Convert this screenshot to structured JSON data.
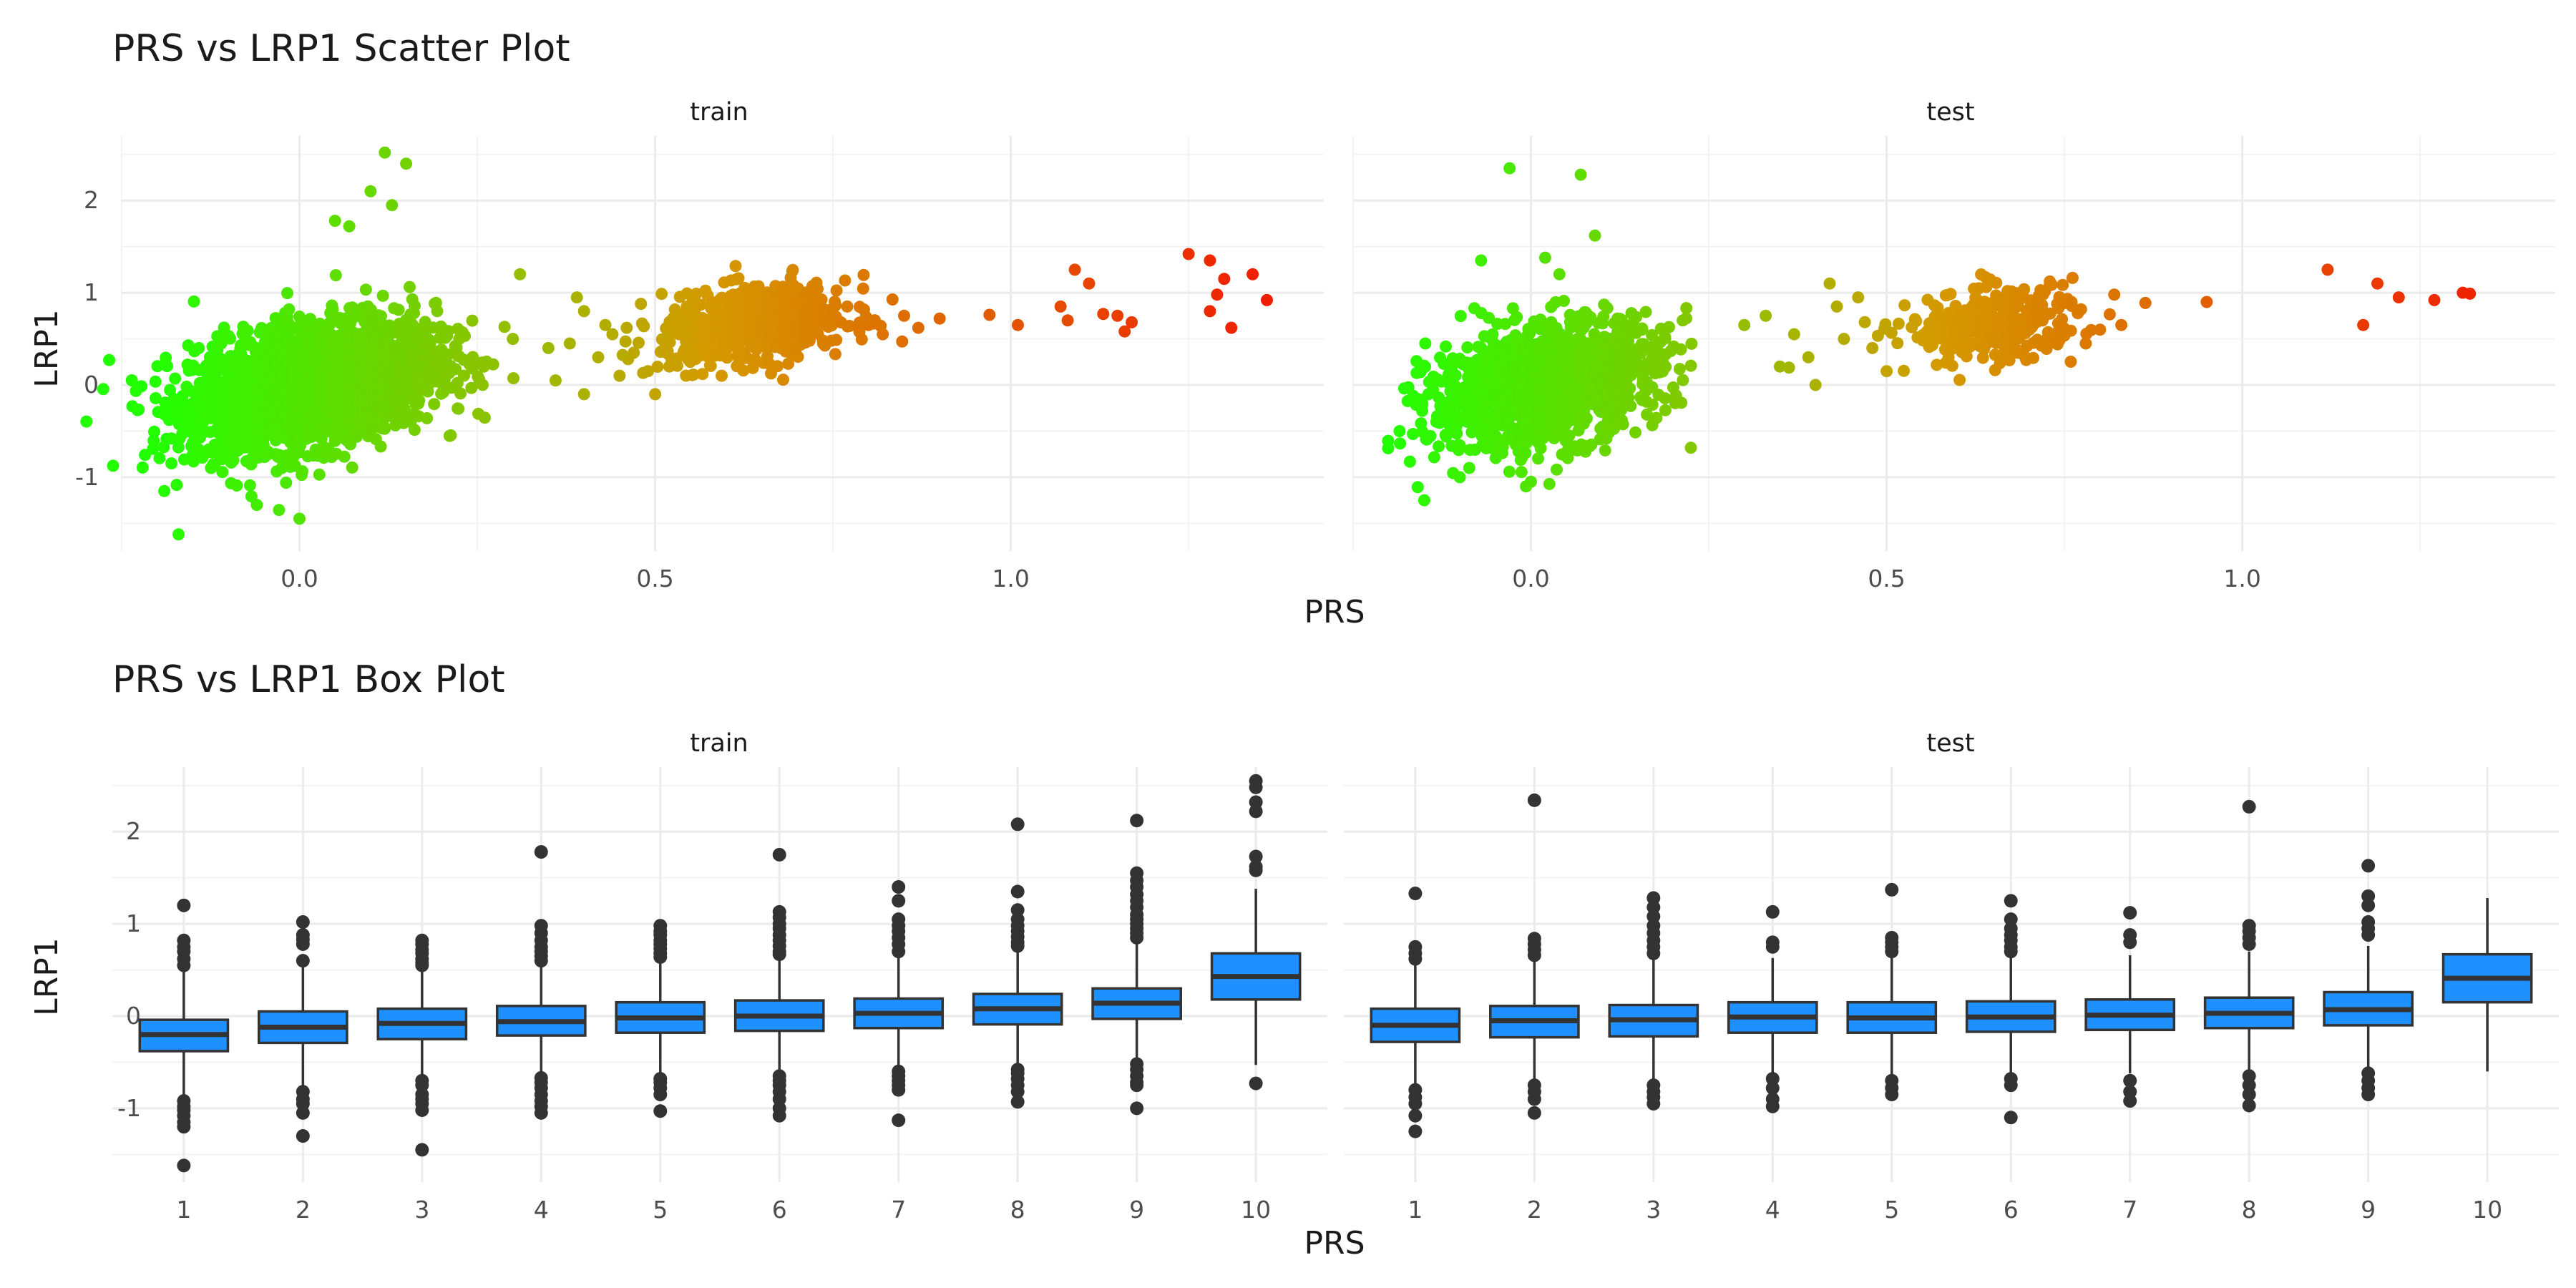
{
  "chart_data": [
    {
      "type": "scatter",
      "title": "PRS vs LRP1 Scatter Plot",
      "xlabel": "PRS",
      "ylabel": "LRP1",
      "xlim": [
        -0.25,
        1.44
      ],
      "ylim": [
        -1.8,
        2.7
      ],
      "x_ticks": [
        0.0,
        0.5,
        1.0
      ],
      "x_tick_labels": [
        "0.0",
        "0.5",
        "1.0"
      ],
      "y_ticks": [
        -1,
        0,
        1,
        2
      ],
      "y_tick_labels": [
        "-1",
        "0",
        "1",
        "2"
      ],
      "grid": true,
      "color_scale": {
        "low": "#22ff00",
        "mid": "#d49a00",
        "high": "#f01e00",
        "domain": [
          -0.2,
          1.35
        ]
      },
      "panels": [
        {
          "name": "train",
          "dense_clusters": [
            {
              "n": 2600,
              "x_mean": 0.02,
              "x_sd": 0.085,
              "y_mean": 0.0,
              "y_sd": 0.32,
              "slope": 1.4
            },
            {
              "n": 600,
              "x_mean": 0.64,
              "x_sd": 0.065,
              "y_mean": 0.65,
              "y_sd": 0.2,
              "slope": 0.8
            }
          ],
          "points": [
            [
              0.12,
              2.52
            ],
            [
              0.15,
              2.4
            ],
            [
              0.05,
              1.78
            ],
            [
              0.07,
              1.72
            ],
            [
              0.1,
              2.1
            ],
            [
              0.13,
              1.95
            ],
            [
              -0.17,
              -1.62
            ],
            [
              -0.19,
              -1.15
            ],
            [
              -0.18,
              -0.58
            ],
            [
              -0.18,
              -0.85
            ],
            [
              -0.06,
              -1.3
            ],
            [
              0.0,
              -1.45
            ],
            [
              0.31,
              1.2
            ],
            [
              0.3,
              0.5
            ],
            [
              0.35,
              0.4
            ],
            [
              0.38,
              0.45
            ],
            [
              0.39,
              0.95
            ],
            [
              0.4,
              0.8
            ],
            [
              0.42,
              0.3
            ],
            [
              0.44,
              0.55
            ],
            [
              0.45,
              0.1
            ],
            [
              0.47,
              0.35
            ],
            [
              0.48,
              0.88
            ],
            [
              0.5,
              -0.1
            ],
            [
              0.52,
              0.2
            ],
            [
              0.36,
              0.05
            ],
            [
              0.4,
              -0.1
            ],
            [
              0.43,
              0.65
            ],
            [
              0.46,
              0.62
            ],
            [
              0.49,
              0.15
            ],
            [
              0.77,
              0.85
            ],
            [
              0.8,
              0.65
            ],
            [
              0.82,
              0.55
            ],
            [
              0.85,
              0.75
            ],
            [
              0.87,
              0.62
            ],
            [
              0.9,
              0.72
            ],
            [
              0.97,
              0.76
            ],
            [
              1.01,
              0.65
            ],
            [
              1.07,
              0.85
            ],
            [
              1.08,
              0.7
            ],
            [
              1.09,
              1.25
            ],
            [
              1.11,
              1.1
            ],
            [
              1.13,
              0.77
            ],
            [
              1.15,
              0.75
            ],
            [
              1.16,
              0.58
            ],
            [
              1.17,
              0.68
            ],
            [
              1.25,
              1.42
            ],
            [
              1.28,
              1.35
            ],
            [
              1.28,
              0.8
            ],
            [
              1.29,
              0.98
            ],
            [
              1.3,
              1.15
            ],
            [
              1.31,
              0.62
            ],
            [
              1.34,
              1.2
            ],
            [
              1.36,
              0.92
            ]
          ]
        },
        {
          "name": "test",
          "dense_clusters": [
            {
              "n": 1300,
              "x_mean": 0.02,
              "x_sd": 0.08,
              "y_mean": 0.0,
              "y_sd": 0.32,
              "slope": 1.4
            },
            {
              "n": 300,
              "x_mean": 0.65,
              "x_sd": 0.06,
              "y_mean": 0.65,
              "y_sd": 0.2,
              "slope": 0.8
            }
          ],
          "points": [
            [
              -0.03,
              2.35
            ],
            [
              0.07,
              2.28
            ],
            [
              0.09,
              1.62
            ],
            [
              -0.07,
              1.35
            ],
            [
              0.02,
              1.38
            ],
            [
              0.04,
              1.2
            ],
            [
              -0.15,
              -1.25
            ],
            [
              -0.16,
              -0.15
            ],
            [
              -0.1,
              -1.0
            ],
            [
              0.0,
              -1.05
            ],
            [
              0.3,
              0.65
            ],
            [
              0.33,
              0.75
            ],
            [
              0.35,
              0.2
            ],
            [
              0.37,
              0.55
            ],
            [
              0.4,
              0.0
            ],
            [
              0.42,
              1.1
            ],
            [
              0.44,
              0.5
            ],
            [
              0.46,
              0.95
            ],
            [
              0.48,
              0.4
            ],
            [
              0.5,
              0.15
            ],
            [
              0.39,
              0.3
            ],
            [
              0.43,
              0.85
            ],
            [
              0.76,
              0.9
            ],
            [
              0.78,
              0.45
            ],
            [
              0.8,
              0.6
            ],
            [
              0.82,
              0.98
            ],
            [
              0.83,
              0.65
            ],
            [
              0.95,
              0.9
            ],
            [
              1.12,
              1.25
            ],
            [
              1.17,
              0.65
            ],
            [
              1.19,
              1.1
            ],
            [
              1.22,
              0.95
            ],
            [
              1.27,
              0.92
            ],
            [
              1.31,
              1.0
            ],
            [
              1.32,
              0.99
            ]
          ]
        }
      ]
    },
    {
      "type": "box",
      "title": "PRS vs LRP1 Box Plot",
      "xlabel": "PRS",
      "ylabel": "LRP1",
      "categories": [
        "1",
        "2",
        "3",
        "4",
        "5",
        "6",
        "7",
        "8",
        "9",
        "10"
      ],
      "ylim": [
        -1.8,
        2.7
      ],
      "y_ticks": [
        -1,
        0,
        1,
        2
      ],
      "y_tick_labels": [
        "-1",
        "0",
        "1",
        "2"
      ],
      "grid": true,
      "box_fill": "#1e90ff",
      "panels": [
        {
          "name": "train",
          "boxes": [
            {
              "q1": -0.38,
              "median": -0.2,
              "q3": -0.04,
              "lower": -0.88,
              "upper": 0.49,
              "outliers": [
                1.2,
                0.82,
                0.75,
                0.7,
                0.62,
                0.55,
                -0.92,
                -0.98,
                -1.02,
                -1.08,
                -1.15,
                -1.2,
                -1.62
              ]
            },
            {
              "q1": -0.29,
              "median": -0.12,
              "q3": 0.05,
              "lower": -0.78,
              "upper": 0.53,
              "outliers": [
                1.02,
                0.88,
                0.83,
                0.78,
                0.6,
                -0.82,
                -0.9,
                -0.95,
                -1.05,
                -1.3
              ]
            },
            {
              "q1": -0.25,
              "median": -0.08,
              "q3": 0.08,
              "lower": -0.7,
              "upper": 0.52,
              "outliers": [
                0.82,
                0.78,
                0.72,
                0.68,
                0.62,
                0.58,
                0.55,
                -0.7,
                -0.75,
                -0.85,
                -0.9,
                -0.95,
                -1.02,
                -1.45
              ]
            },
            {
              "q1": -0.21,
              "median": -0.06,
              "q3": 0.11,
              "lower": -0.66,
              "upper": 0.56,
              "outliers": [
                1.78,
                0.98,
                0.9,
                0.82,
                0.75,
                0.7,
                0.65,
                0.6,
                -0.67,
                -0.72,
                -0.78,
                -0.85,
                -0.92,
                -0.98,
                -1.05
              ]
            },
            {
              "q1": -0.18,
              "median": -0.02,
              "q3": 0.15,
              "lower": -0.66,
              "upper": 0.62,
              "outliers": [
                0.98,
                0.92,
                0.88,
                0.82,
                0.78,
                0.73,
                0.68,
                0.64,
                -0.68,
                -0.72,
                -0.78,
                -0.85,
                -1.03
              ]
            },
            {
              "q1": -0.16,
              "median": 0.0,
              "q3": 0.17,
              "lower": -0.63,
              "upper": 0.65,
              "outliers": [
                1.75,
                1.13,
                1.07,
                1.0,
                0.95,
                0.88,
                0.82,
                0.76,
                0.7,
                0.67,
                -0.65,
                -0.7,
                -0.75,
                -0.82,
                -0.9,
                -1.0,
                -1.08
              ]
            },
            {
              "q1": -0.13,
              "median": 0.03,
              "q3": 0.19,
              "lower": -0.6,
              "upper": 0.67,
              "outliers": [
                1.4,
                1.25,
                1.05,
                0.98,
                0.92,
                0.85,
                0.78,
                0.7,
                -0.6,
                -0.65,
                -0.7,
                -0.75,
                -0.8,
                -1.13
              ]
            },
            {
              "q1": -0.09,
              "median": 0.08,
              "q3": 0.24,
              "lower": -0.57,
              "upper": 0.73,
              "outliers": [
                2.08,
                1.35,
                1.15,
                1.05,
                0.98,
                0.92,
                0.86,
                0.8,
                0.76,
                -0.58,
                -0.62,
                -0.68,
                -0.75,
                -0.82,
                -0.93
              ]
            },
            {
              "q1": -0.03,
              "median": 0.14,
              "q3": 0.3,
              "lower": -0.5,
              "upper": 0.8,
              "outliers": [
                2.12,
                1.55,
                1.47,
                1.4,
                1.32,
                1.25,
                1.18,
                1.1,
                1.05,
                1.0,
                0.95,
                0.9,
                0.85,
                -0.52,
                -0.58,
                -0.65,
                -0.72,
                -0.75,
                -1.0
              ]
            },
            {
              "q1": 0.18,
              "median": 0.43,
              "q3": 0.68,
              "lower": -0.53,
              "upper": 1.38,
              "outliers": [
                2.55,
                2.48,
                2.32,
                2.22,
                1.73,
                1.62,
                1.58,
                -0.73
              ]
            }
          ]
        },
        {
          "name": "test",
          "boxes": [
            {
              "q1": -0.28,
              "median": -0.1,
              "q3": 0.08,
              "lower": -0.78,
              "upper": 0.6,
              "outliers": [
                1.33,
                0.75,
                0.68,
                0.62,
                -0.8,
                -0.88,
                -0.95,
                -1.08,
                -1.25
              ]
            },
            {
              "q1": -0.23,
              "median": -0.05,
              "q3": 0.11,
              "lower": -0.72,
              "upper": 0.6,
              "outliers": [
                2.34,
                0.84,
                0.78,
                0.72,
                0.66,
                -0.75,
                -0.82,
                -0.9,
                -1.05
              ]
            },
            {
              "q1": -0.22,
              "median": -0.04,
              "q3": 0.12,
              "lower": -0.7,
              "upper": 0.62,
              "outliers": [
                1.28,
                1.18,
                1.08,
                0.98,
                0.9,
                0.82,
                0.75,
                0.68,
                -0.75,
                -0.82,
                -0.88,
                -0.95
              ]
            },
            {
              "q1": -0.18,
              "median": -0.01,
              "q3": 0.15,
              "lower": -0.66,
              "upper": 0.63,
              "outliers": [
                1.13,
                0.8,
                0.75,
                -0.68,
                -0.78,
                -0.9,
                -0.98
              ]
            },
            {
              "q1": -0.18,
              "median": -0.02,
              "q3": 0.15,
              "lower": -0.66,
              "upper": 0.64,
              "outliers": [
                1.37,
                0.85,
                0.8,
                0.75,
                0.7,
                -0.7,
                -0.78,
                -0.85
              ]
            },
            {
              "q1": -0.17,
              "median": -0.01,
              "q3": 0.16,
              "lower": -0.65,
              "upper": 0.65,
              "outliers": [
                1.25,
                1.05,
                0.95,
                0.88,
                0.82,
                0.75,
                0.7,
                -0.68,
                -0.75,
                -1.1
              ]
            },
            {
              "q1": -0.15,
              "median": 0.01,
              "q3": 0.18,
              "lower": -0.62,
              "upper": 0.66,
              "outliers": [
                1.12,
                0.88,
                0.8,
                -0.7,
                -0.82,
                -0.92
              ]
            },
            {
              "q1": -0.13,
              "median": 0.03,
              "q3": 0.2,
              "lower": -0.6,
              "upper": 0.7,
              "outliers": [
                2.27,
                0.98,
                0.92,
                0.85,
                0.78,
                -0.65,
                -0.75,
                -0.85,
                -0.97
              ]
            },
            {
              "q1": -0.1,
              "median": 0.07,
              "q3": 0.26,
              "lower": -0.58,
              "upper": 0.76,
              "outliers": [
                1.63,
                1.3,
                1.2,
                1.02,
                0.95,
                0.88,
                -0.62,
                -0.7,
                -0.78,
                -0.85
              ]
            },
            {
              "q1": 0.15,
              "median": 0.41,
              "q3": 0.67,
              "lower": -0.6,
              "upper": 1.28,
              "outliers": []
            }
          ]
        }
      ]
    }
  ]
}
